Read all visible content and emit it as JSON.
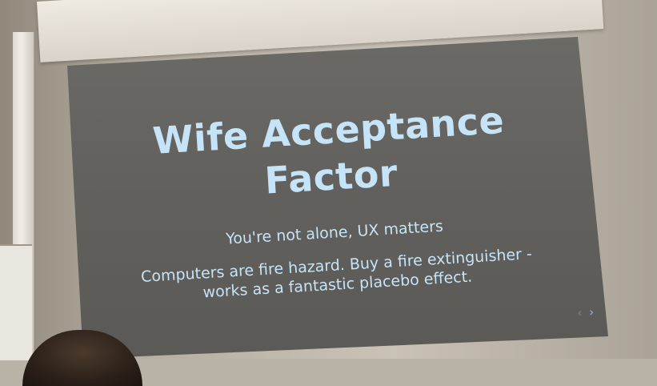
{
  "slide": {
    "title_line1": "Wife Acceptance",
    "title_line2": "Factor",
    "subtitle": "You're not alone, UX matters",
    "body_line1": "Computers are fire hazard. Buy a fire extinguisher -",
    "body_line2": "works as a fantastic placebo effect.",
    "nav_prev_icon": "chevron-left-icon",
    "nav_next_icon": "chevron-right-icon"
  },
  "colors": {
    "text": "#c6e4f7",
    "screen": "#62615d",
    "wall": "#b9b2a6"
  }
}
